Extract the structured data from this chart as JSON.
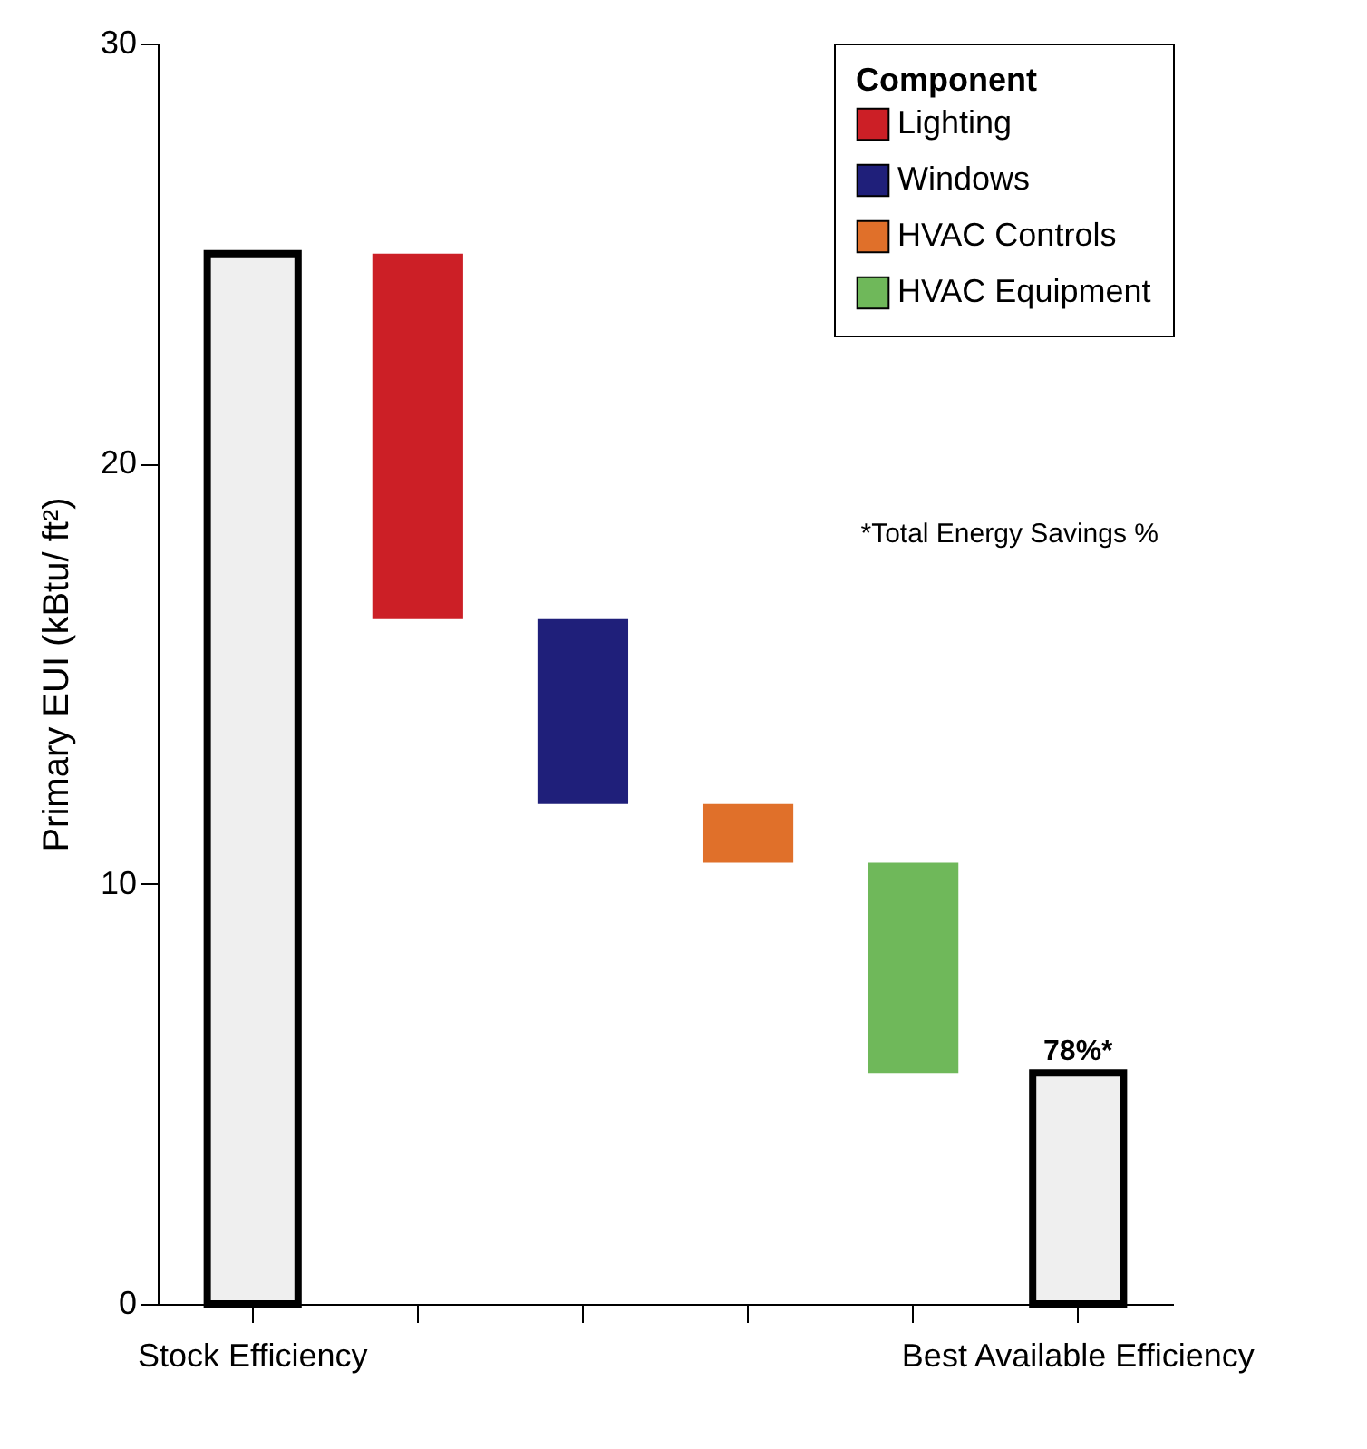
{
  "chart_data": {
    "type": "bar",
    "ylabel": "Primary EUI (kBtu/ ft²)",
    "legend_title": "Component",
    "legend": "top right",
    "categories": [
      "Stock Efficiency",
      null,
      null,
      null,
      null,
      "Best Available Efficiency"
    ],
    "series": [
      {
        "color": "#efefef",
        "values": [
          25,
          null,
          null,
          null,
          null,
          null
        ],
        "base": [
          0,
          null,
          null,
          null,
          null,
          null
        ]
      },
      {
        "name": "Lighting",
        "color": "#cc1f26",
        "values": [
          null,
          8.7,
          null,
          null,
          null,
          null
        ],
        "base": [
          null,
          16.3,
          null,
          null,
          null,
          null
        ]
      },
      {
        "name": "Windows",
        "color": "#1f1f7a",
        "values": [
          null,
          null,
          4.4,
          null,
          null,
          null
        ],
        "base": [
          null,
          null,
          11.9,
          null,
          null,
          null
        ]
      },
      {
        "name": "HVAC Controls",
        "color": "#e0702a",
        "values": [
          null,
          null,
          null,
          1.4,
          null,
          null
        ],
        "base": [
          null,
          null,
          null,
          10.5,
          null,
          null
        ]
      },
      {
        "name": "HVAC Equipment",
        "color": "#6fb85a",
        "values": [
          null,
          null,
          null,
          null,
          5,
          null
        ],
        "base": [
          null,
          null,
          null,
          null,
          5.5,
          null
        ]
      },
      {
        "color": "#efefef",
        "values": [
          null,
          null,
          null,
          null,
          null,
          5.5
        ],
        "base": [
          null,
          null,
          null,
          null,
          null,
          0
        ]
      }
    ],
    "ylim": [
      0,
      30
    ],
    "yticks": [
      0,
      10,
      20,
      30
    ],
    "annotations": [
      {
        "text": "78%*",
        "x": "Best Available Efficiency",
        "y": 5.5
      },
      "*Total Energy Savings %"
    ]
  }
}
